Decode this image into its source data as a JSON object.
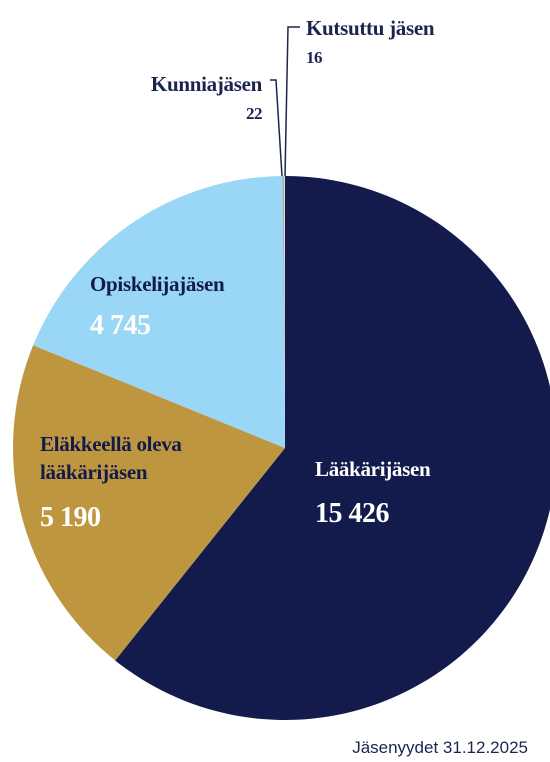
{
  "chart_data": {
    "type": "pie",
    "categories": [
      "Lääkärijäsen",
      "Eläkkeellä oleva lääkärijäsen",
      "Opiskelijajäsen",
      "Kunniajäsen",
      "Kutsuttu jäsen"
    ],
    "values": [
      15426,
      5190,
      4745,
      22,
      16
    ],
    "value_labels": [
      "15 426",
      "5 190",
      "4 745",
      "22",
      "16"
    ],
    "colors": [
      "#121b4b",
      "#bf9640",
      "#9ad6f6",
      "#a9a9a9",
      "#d9d9d9"
    ],
    "footnote": "Jäsenyydet 31.12.2025"
  }
}
